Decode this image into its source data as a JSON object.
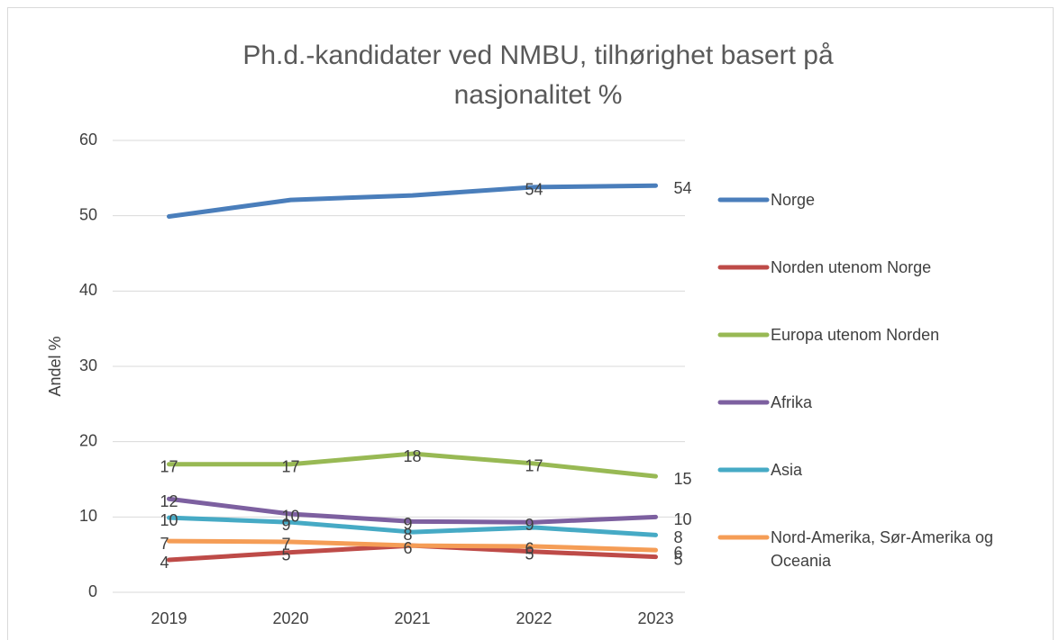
{
  "chart_data": {
    "type": "line",
    "title": "Ph.d.-kandidater ved NMBU, tilhørighet basert på nasjonalitet %",
    "y_label": "Andel %",
    "categories": [
      "2019",
      "2020",
      "2021",
      "2022",
      "2023"
    ],
    "ylim": [
      0,
      60
    ],
    "yticks": [
      0,
      10,
      20,
      30,
      40,
      50,
      60
    ],
    "grid": true,
    "legend": "right",
    "series": [
      {
        "name": "Norge",
        "color": "#4a7ebb",
        "values": [
          49.9,
          52.1,
          52.7,
          53.8,
          54.0
        ],
        "value_labels": [
          null,
          null,
          null,
          "54",
          "54"
        ]
      },
      {
        "name": "Norden utenom Norge",
        "color": "#be4b48",
        "values": [
          4.3,
          5.3,
          6.2,
          5.4,
          4.7
        ],
        "value_labels": [
          "4",
          "5",
          "6",
          "5",
          "5"
        ]
      },
      {
        "name": "Europa utenom Norden",
        "color": "#98b954",
        "values": [
          17.0,
          17.0,
          18.4,
          17.1,
          15.4
        ],
        "value_labels": [
          "17",
          "17",
          "18",
          "17",
          "15"
        ]
      },
      {
        "name": "Afrika",
        "color": "#7d60a0",
        "values": [
          12.4,
          10.4,
          9.4,
          9.3,
          10.0
        ],
        "value_labels": [
          "12",
          "10",
          "9",
          "9",
          "10"
        ]
      },
      {
        "name": "Asia",
        "color": "#46aac5",
        "values": [
          9.9,
          9.3,
          8.0,
          8.6,
          7.6
        ],
        "value_labels": [
          "10",
          "9",
          "8",
          null,
          "8"
        ]
      },
      {
        "name": "Nord-Amerika, Sør-Amerika og Oceania",
        "color": "#f59d56",
        "values": [
          6.8,
          6.7,
          6.2,
          6.1,
          5.6
        ],
        "value_labels": [
          "7",
          "7",
          null,
          "6",
          "6"
        ]
      }
    ]
  }
}
